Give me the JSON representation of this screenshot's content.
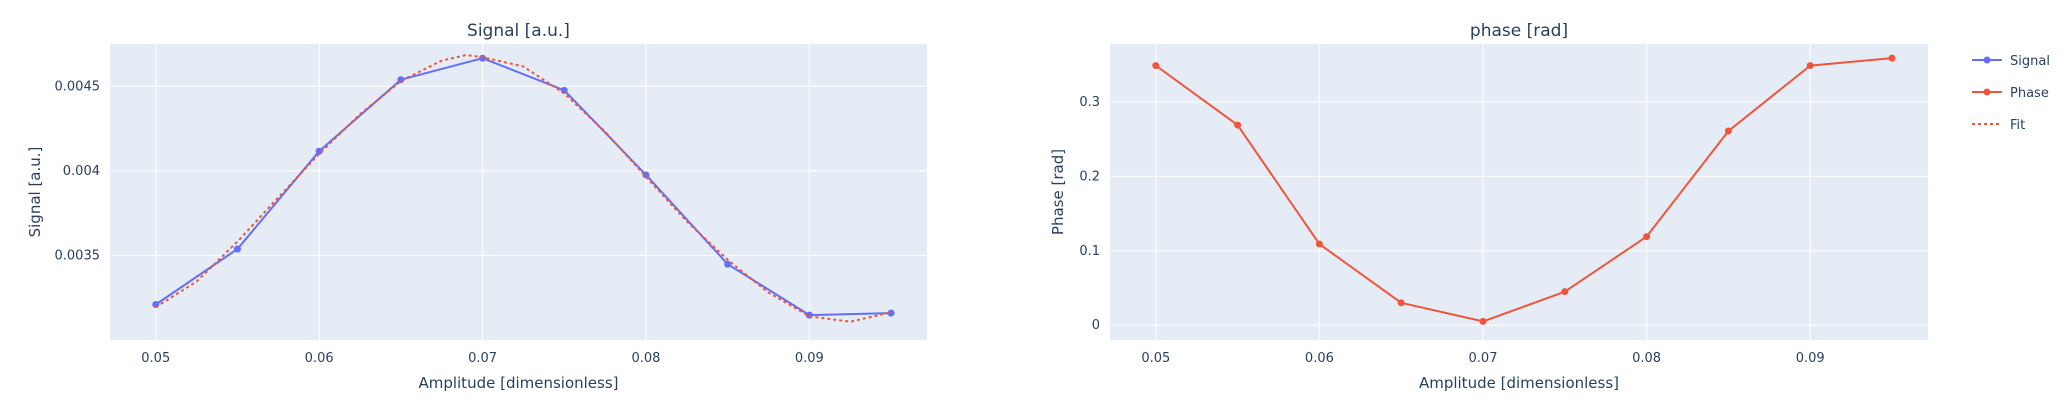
{
  "chart_data": [
    {
      "type": "line",
      "title": "Signal [a.u.]",
      "xlabel": "Amplitude [dimensionless]",
      "ylabel": "Signal [a.u.]",
      "xlim": [
        0.0472,
        0.0972
      ],
      "ylim": [
        0.003,
        0.00475
      ],
      "xticks": [
        0.05,
        0.06,
        0.07,
        0.08,
        0.09
      ],
      "xtick_labels": [
        "0.05",
        "0.06",
        "0.07",
        "0.08",
        "0.09"
      ],
      "yticks": [
        0.0035,
        0.004,
        0.0045
      ],
      "ytick_labels": [
        "0.0035",
        "0.004",
        "0.0045"
      ],
      "grid": true,
      "series": [
        {
          "name": "Signal",
          "style": "lines+markers",
          "color": "#636efa",
          "x": [
            0.05,
            0.055,
            0.06,
            0.065,
            0.07,
            0.075,
            0.08,
            0.085,
            0.09,
            0.095
          ],
          "y": [
            0.00321,
            0.003538,
            0.004116,
            0.004539,
            0.004666,
            0.004476,
            0.003976,
            0.003448,
            0.003147,
            0.003159
          ]
        },
        {
          "name": "Fit",
          "style": "dotted",
          "color": "#ef553b",
          "x": [
            0.05,
            0.0525,
            0.055,
            0.0575,
            0.06,
            0.0625,
            0.065,
            0.0675,
            0.069,
            0.07,
            0.0725,
            0.075,
            0.0775,
            0.08,
            0.0825,
            0.085,
            0.0875,
            0.09,
            0.0925,
            0.095
          ],
          "y": [
            0.003194,
            0.003346,
            0.003582,
            0.003843,
            0.004101,
            0.004335,
            0.004531,
            0.004652,
            0.004685,
            0.004672,
            0.004617,
            0.004458,
            0.004231,
            0.003965,
            0.003701,
            0.003474,
            0.00328,
            0.00314,
            0.003108,
            0.003163
          ]
        }
      ]
    },
    {
      "type": "line",
      "title": "phase [rad]",
      "xlabel": "Amplitude [dimensionless]",
      "ylabel": "Phase [rad]",
      "xlim": [
        0.0472,
        0.0972
      ],
      "ylim": [
        -0.02,
        0.378
      ],
      "xticks": [
        0.05,
        0.06,
        0.07,
        0.08,
        0.09
      ],
      "xtick_labels": [
        "0.05",
        "0.06",
        "0.07",
        "0.08",
        "0.09"
      ],
      "yticks": [
        0,
        0.1,
        0.2,
        0.3
      ],
      "ytick_labels": [
        "0",
        "0.1",
        "0.2",
        "0.3"
      ],
      "grid": true,
      "series": [
        {
          "name": "Phase",
          "style": "lines+markers",
          "color": "#ef553b",
          "x": [
            0.05,
            0.055,
            0.06,
            0.065,
            0.07,
            0.075,
            0.08,
            0.085,
            0.09,
            0.095
          ],
          "y": [
            0.349,
            0.269,
            0.109,
            0.03,
            0.005,
            0.045,
            0.119,
            0.261,
            0.349,
            0.359
          ]
        }
      ]
    }
  ],
  "legend": {
    "placement": "top-right",
    "items": [
      {
        "label": "Signal",
        "color": "#636efa",
        "style": "lines+markers"
      },
      {
        "label": "Phase",
        "color": "#ef553b",
        "style": "lines+markers"
      },
      {
        "label": "Fit",
        "color": "#ef553b",
        "style": "dotted"
      }
    ]
  }
}
